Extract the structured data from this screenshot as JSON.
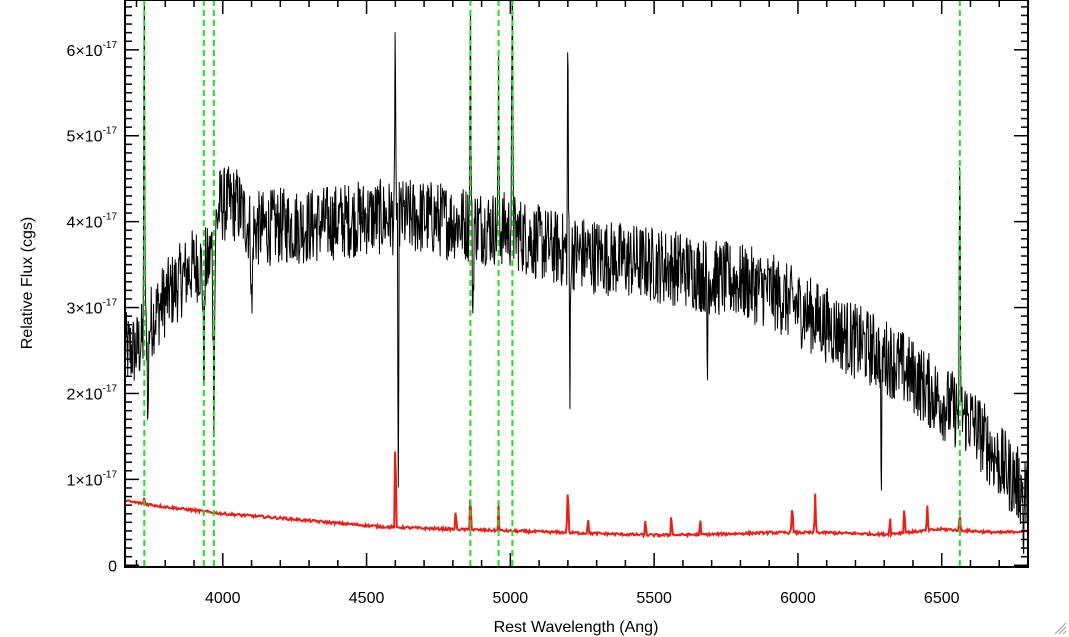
{
  "chart_data": {
    "type": "line",
    "title": "",
    "xlabel": "Rest Wavelength (Ang)",
    "ylabel": "Relative Flux (cgs)",
    "xlim": [
      3660,
      6800
    ],
    "ylim": [
      -2e-19,
      6.58e-17
    ],
    "x_ticks": [
      4000,
      4500,
      5000,
      5500,
      6000,
      6500
    ],
    "x_tick_labels": [
      "4000",
      "4500",
      "5000",
      "5500",
      "6000",
      "6500"
    ],
    "y_ticks": [
      0,
      1e-17,
      2e-17,
      3e-17,
      4e-17,
      5e-17,
      6e-17
    ],
    "y_tick_labels": [
      {
        "mantissa": "0",
        "exponent": ""
      },
      {
        "mantissa": "1×10",
        "exponent": "-17"
      },
      {
        "mantissa": "2×10",
        "exponent": "-17"
      },
      {
        "mantissa": "3×10",
        "exponent": "-17"
      },
      {
        "mantissa": "4×10",
        "exponent": "-17"
      },
      {
        "mantissa": "5×10",
        "exponent": "-17"
      },
      {
        "mantissa": "6×10",
        "exponent": "-17"
      }
    ],
    "grid": false,
    "flux_scale": 1e-17,
    "series": [
      {
        "color": "#000000",
        "noise_amplitude": 0.45,
        "continuum": {
          "x": [
            3660,
            3700,
            3760,
            3800,
            3850,
            3900,
            3950,
            3990,
            4050,
            4100,
            4200,
            4300,
            4400,
            4500,
            4600,
            4700,
            4800,
            4900,
            5000,
            5100,
            5200,
            5300,
            5400,
            5500,
            5600,
            5700,
            5800,
            5900,
            6000,
            6100,
            6200,
            6300,
            6400,
            6500,
            6600,
            6700,
            6800
          ],
          "y": [
            2.5,
            2.5,
            2.9,
            3.1,
            3.3,
            3.5,
            3.5,
            4.2,
            4.2,
            3.9,
            3.95,
            3.95,
            4.0,
            4.05,
            4.05,
            4.05,
            4.0,
            3.95,
            3.9,
            3.75,
            3.65,
            3.6,
            3.55,
            3.5,
            3.45,
            3.35,
            3.3,
            3.2,
            3.0,
            2.8,
            2.6,
            2.45,
            2.2,
            1.9,
            1.7,
            1.2,
            0.8
          ]
        },
        "features": [
          {
            "x": 3727,
            "y": 6.6,
            "w": 4
          },
          {
            "x": 3740,
            "y": 1.6,
            "w": 4
          },
          {
            "x": 3934,
            "y": 2.2,
            "w": 6
          },
          {
            "x": 3969,
            "y": 1.85,
            "w": 6
          },
          {
            "x": 4101,
            "y": 2.8,
            "w": 5
          },
          {
            "x": 4600,
            "y": 6.6,
            "w": 3
          },
          {
            "x": 4610,
            "y": -0.02,
            "w": 3
          },
          {
            "x": 4861,
            "y": 6.6,
            "w": 4
          },
          {
            "x": 4870,
            "y": 2.85,
            "w": 4
          },
          {
            "x": 4959,
            "y": 5.6,
            "w": 4
          },
          {
            "x": 5007,
            "y": 6.6,
            "w": 5
          },
          {
            "x": 5200,
            "y": 6.6,
            "w": 3
          },
          {
            "x": 5207,
            "y": 1.75,
            "w": 3
          },
          {
            "x": 5685,
            "y": 1.95,
            "w": 3
          },
          {
            "x": 6290,
            "y": 0.75,
            "w": 4
          },
          {
            "x": 6563,
            "y": 4.7,
            "w": 4
          },
          {
            "x": 6785,
            "y": 0.1,
            "w": 3
          }
        ]
      },
      {
        "color": "#e8201c",
        "noise_amplitude": 0.015,
        "continuum": {
          "x": [
            3660,
            3800,
            4000,
            4200,
            4400,
            4550,
            4700,
            4900,
            5100,
            5300,
            5500,
            5700,
            5900,
            6100,
            6300,
            6500,
            6700,
            6800
          ],
          "y": [
            0.75,
            0.68,
            0.6,
            0.55,
            0.49,
            0.45,
            0.43,
            0.41,
            0.39,
            0.37,
            0.35,
            0.36,
            0.38,
            0.38,
            0.36,
            0.42,
            0.38,
            0.4
          ]
        },
        "features": [
          {
            "x": 3727,
            "y": 0.8,
            "w": 4
          },
          {
            "x": 4600,
            "y": 1.6,
            "w": 4
          },
          {
            "x": 4810,
            "y": 0.72,
            "w": 3
          },
          {
            "x": 4861,
            "y": 0.9,
            "w": 4
          },
          {
            "x": 4959,
            "y": 0.74,
            "w": 3
          },
          {
            "x": 5200,
            "y": 0.92,
            "w": 5
          },
          {
            "x": 5270,
            "y": 0.62,
            "w": 3
          },
          {
            "x": 5470,
            "y": 0.58,
            "w": 3
          },
          {
            "x": 5560,
            "y": 0.68,
            "w": 3
          },
          {
            "x": 5660,
            "y": 0.58,
            "w": 3
          },
          {
            "x": 5980,
            "y": 0.72,
            "w": 5
          },
          {
            "x": 6060,
            "y": 0.82,
            "w": 4
          },
          {
            "x": 6320,
            "y": 0.62,
            "w": 3
          },
          {
            "x": 6370,
            "y": 0.72,
            "w": 4
          },
          {
            "x": 6450,
            "y": 0.68,
            "w": 4
          },
          {
            "x": 6563,
            "y": 0.62,
            "w": 4
          }
        ]
      }
    ],
    "reference_lines": {
      "color": "#22dd22",
      "x": [
        3727,
        3934,
        3969,
        4861,
        4959,
        5007,
        6563
      ]
    }
  }
}
